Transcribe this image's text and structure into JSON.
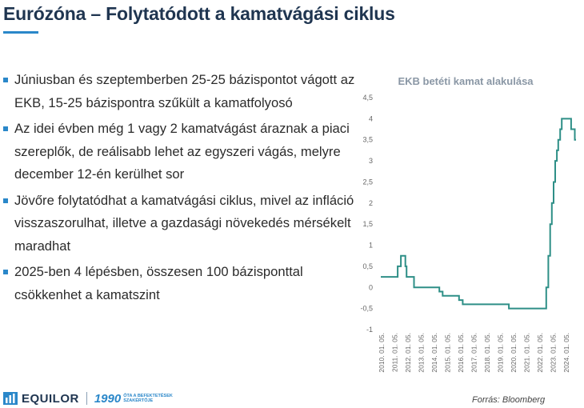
{
  "slide": {
    "title": "Eurózóna – Folytatódott a kamatvágási ciklus",
    "bullets": [
      "Júniusban és szeptemberben 25-25 bázispontot vágott az EKB, 15-25 bázispontra szűkült a kamatfolyosó",
      "Az idei évben még 1 vagy 2 kamatvágást áraznak a piaci szereplők, de reálisabb lehet az egyszeri vágás, melyre december 12-én kerülhet sor",
      "Jövőre folytatódhat a kamatvágási ciklus, mivel az infláció visszaszorulhat, illetve a gazdasági növekedés mérsékelt maradhat",
      "2025-ben 4 lépésben, összesen 100 bázisponttal csökkenhet a kamatszint"
    ],
    "source": "Forrás: Bloomberg"
  },
  "footer": {
    "logo_text": "EQUILOR",
    "logo_year": "1990",
    "logo_tagline": "óta a befektetések szakértője"
  },
  "colors": {
    "accent": "#2a87c9",
    "title": "#1f3550",
    "line": "#2e8f87"
  },
  "chart_data": {
    "type": "line",
    "title": "EKB betéti kamat alakulása",
    "xlabel": "",
    "ylabel": "",
    "ylim": [
      -1,
      4.5
    ],
    "yticks": [
      "4,5",
      "4",
      "3,5",
      "3",
      "2,5",
      "2",
      "1,5",
      "1",
      "0,5",
      "0",
      "-0,5",
      "-1"
    ],
    "ytick_values": [
      4.5,
      4,
      3.5,
      3,
      2.5,
      2,
      1.5,
      1,
      0.5,
      0,
      -0.5,
      -1
    ],
    "xlim": [
      2010.0,
      2024.92
    ],
    "xticks": [
      "2010. 01. 05.",
      "2011. 01. 05.",
      "2012. 01. 05.",
      "2013. 01. 05.",
      "2014. 01. 05.",
      "2015. 01. 05.",
      "2016. 01. 05.",
      "2017. 01. 05.",
      "2018. 01. 05.",
      "2019. 01. 05.",
      "2020. 01. 05.",
      "2021. 01. 05.",
      "2022. 01. 05.",
      "2023. 01. 05.",
      "2024. 01. 05."
    ],
    "xtick_values": [
      2010,
      2011,
      2012,
      2013,
      2014,
      2015,
      2016,
      2017,
      2018,
      2019,
      2020,
      2021,
      2022,
      2023,
      2024
    ],
    "series": [
      {
        "name": "EKB betéti kamat",
        "step": true,
        "x": [
          2010.0,
          2011.28,
          2011.52,
          2011.86,
          2011.95,
          2012.52,
          2014.44,
          2014.69,
          2015.93,
          2016.21,
          2018.0,
          2019.71,
          2022.54,
          2022.7,
          2022.84,
          2022.97,
          2023.1,
          2023.22,
          2023.35,
          2023.45,
          2023.6,
          2023.72,
          2024.43,
          2024.71,
          2024.8
        ],
        "values": [
          0.25,
          0.5,
          0.75,
          0.5,
          0.25,
          0.0,
          -0.1,
          -0.2,
          -0.3,
          -0.4,
          -0.4,
          -0.5,
          0.0,
          0.75,
          1.5,
          2.0,
          2.5,
          3.0,
          3.25,
          3.5,
          3.75,
          4.0,
          3.75,
          3.5,
          3.5
        ]
      }
    ]
  }
}
